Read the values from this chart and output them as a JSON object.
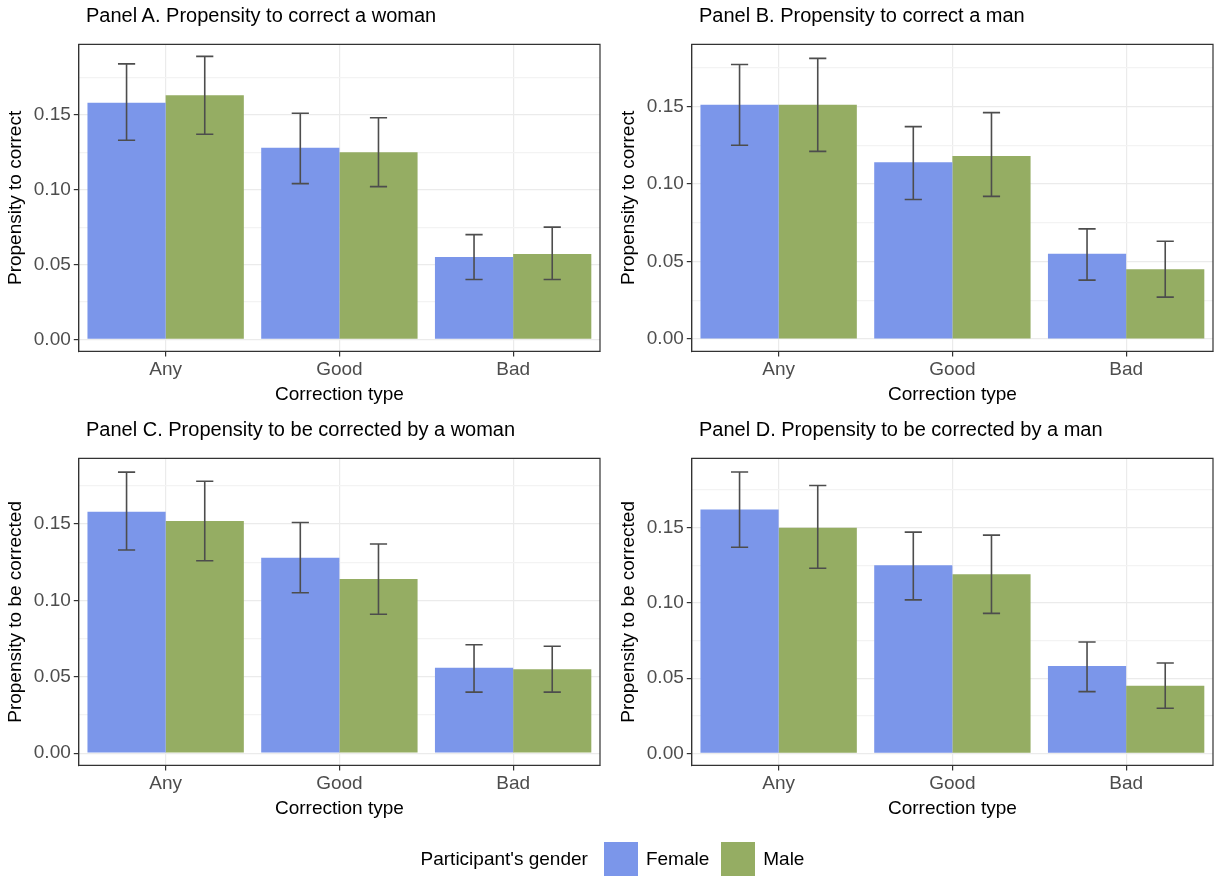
{
  "chart_data": [
    {
      "type": "bar",
      "title": "Panel A. Propensity to correct a woman",
      "xlabel": "Correction type",
      "ylabel": "Propensity to correct",
      "categories": [
        "Any",
        "Good",
        "Bad"
      ],
      "ylim": [
        -0.008,
        0.197
      ],
      "yticks": [
        {
          "value": 0,
          "label": "0.00"
        },
        {
          "value": 0.025,
          "label": null
        },
        {
          "value": 0.05,
          "label": "0.05"
        },
        {
          "value": 0.075,
          "label": null
        },
        {
          "value": 0.1,
          "label": "0.10"
        },
        {
          "value": 0.125,
          "label": null
        },
        {
          "value": 0.15,
          "label": "0.15"
        },
        {
          "value": 0.175,
          "label": null
        }
      ],
      "grid": true,
      "series": [
        {
          "color": "#7b96ea",
          "values": [
            0.158,
            0.128,
            0.055
          ],
          "errors": [
            [
              0.133,
              0.184
            ],
            [
              0.104,
              0.151
            ],
            [
              0.04,
              0.07
            ]
          ]
        },
        {
          "color": "#95ad63",
          "values": [
            0.163,
            0.125,
            0.057
          ],
          "errors": [
            [
              0.137,
              0.189
            ],
            [
              0.102,
              0.148
            ],
            [
              0.04,
              0.075
            ]
          ]
        }
      ]
    },
    {
      "type": "bar",
      "title": "Panel B. Propensity to correct a man",
      "xlabel": "Correction type",
      "ylabel": "Propensity to correct",
      "categories": [
        "Any",
        "Good",
        "Bad"
      ],
      "ylim": [
        -0.008,
        0.19
      ],
      "yticks": [
        {
          "value": 0,
          "label": "0.00"
        },
        {
          "value": 0.025,
          "label": null
        },
        {
          "value": 0.05,
          "label": "0.05"
        },
        {
          "value": 0.075,
          "label": null
        },
        {
          "value": 0.1,
          "label": "0.10"
        },
        {
          "value": 0.125,
          "label": null
        },
        {
          "value": 0.15,
          "label": "0.15"
        },
        {
          "value": 0.175,
          "label": null
        }
      ],
      "grid": true,
      "series": [
        {
          "color": "#7b96ea",
          "values": [
            0.151,
            0.114,
            0.055
          ],
          "errors": [
            [
              0.125,
              0.177
            ],
            [
              0.09,
              0.137
            ],
            [
              0.038,
              0.071
            ]
          ]
        },
        {
          "color": "#95ad63",
          "values": [
            0.151,
            0.118,
            0.045
          ],
          "errors": [
            [
              0.121,
              0.181
            ],
            [
              0.092,
              0.146
            ],
            [
              0.027,
              0.063
            ]
          ]
        }
      ]
    },
    {
      "type": "bar",
      "title": "Panel C. Propensity to be corrected by a woman",
      "xlabel": "Correction type",
      "ylabel": "Propensity to be corrected",
      "categories": [
        "Any",
        "Good",
        "Bad"
      ],
      "ylim": [
        -0.008,
        0.193
      ],
      "yticks": [
        {
          "value": 0,
          "label": "0.00"
        },
        {
          "value": 0.025,
          "label": null
        },
        {
          "value": 0.05,
          "label": "0.05"
        },
        {
          "value": 0.075,
          "label": null
        },
        {
          "value": 0.1,
          "label": "0.10"
        },
        {
          "value": 0.125,
          "label": null
        },
        {
          "value": 0.15,
          "label": "0.15"
        },
        {
          "value": 0.175,
          "label": null
        }
      ],
      "grid": true,
      "series": [
        {
          "color": "#7b96ea",
          "values": [
            0.158,
            0.128,
            0.056
          ],
          "errors": [
            [
              0.133,
              0.184
            ],
            [
              0.105,
              0.151
            ],
            [
              0.04,
              0.071
            ]
          ]
        },
        {
          "color": "#95ad63",
          "values": [
            0.152,
            0.114,
            0.055
          ],
          "errors": [
            [
              0.126,
              0.178
            ],
            [
              0.091,
              0.137
            ],
            [
              0.04,
              0.07
            ]
          ]
        }
      ]
    },
    {
      "type": "bar",
      "title": "Panel D. Propensity to be corrected by a man",
      "xlabel": "Correction type",
      "ylabel": "Propensity to be corrected",
      "categories": [
        "Any",
        "Good",
        "Bad"
      ],
      "ylim": [
        -0.008,
        0.196
      ],
      "yticks": [
        {
          "value": 0,
          "label": "0.00"
        },
        {
          "value": 0.025,
          "label": null
        },
        {
          "value": 0.05,
          "label": "0.05"
        },
        {
          "value": 0.075,
          "label": null
        },
        {
          "value": 0.1,
          "label": "0.10"
        },
        {
          "value": 0.125,
          "label": null
        },
        {
          "value": 0.15,
          "label": "0.15"
        },
        {
          "value": 0.175,
          "label": null
        }
      ],
      "grid": true,
      "legend": "bottom",
      "legend_title": "Participant's gender",
      "series": [
        {
          "name": "Female",
          "color": "#7b96ea",
          "values": [
            0.162,
            0.125,
            0.058
          ],
          "errors": [
            [
              0.137,
              0.187
            ],
            [
              0.102,
              0.147
            ],
            [
              0.041,
              0.074
            ]
          ]
        },
        {
          "name": "Male",
          "color": "#95ad63",
          "values": [
            0.15,
            0.119,
            0.045
          ],
          "errors": [
            [
              0.123,
              0.178
            ],
            [
              0.093,
              0.145
            ],
            [
              0.03,
              0.06
            ]
          ]
        }
      ]
    }
  ]
}
